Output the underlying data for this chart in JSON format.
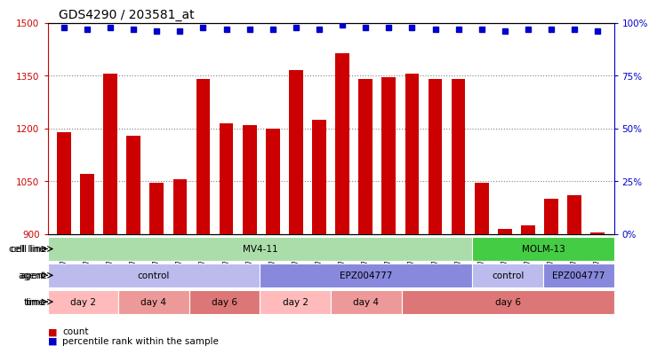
{
  "title": "GDS4290 / 203581_at",
  "samples": [
    "GSM739151",
    "GSM739152",
    "GSM739153",
    "GSM739157",
    "GSM739158",
    "GSM739159",
    "GSM739163",
    "GSM739164",
    "GSM739165",
    "GSM739148",
    "GSM739149",
    "GSM739150",
    "GSM739154",
    "GSM739155",
    "GSM739156",
    "GSM739160",
    "GSM739161",
    "GSM739162",
    "GSM739169",
    "GSM739170",
    "GSM739171",
    "GSM739166",
    "GSM739167",
    "GSM739168"
  ],
  "counts": [
    1190,
    1070,
    1355,
    1180,
    1045,
    1055,
    1340,
    1215,
    1210,
    1200,
    1365,
    1225,
    1415,
    1340,
    1345,
    1355,
    1340,
    1340,
    1045,
    915,
    925,
    1000,
    1010,
    905
  ],
  "percentile_ranks": [
    98,
    97,
    98,
    97,
    96,
    96,
    98,
    97,
    97,
    97,
    98,
    97,
    99,
    98,
    98,
    98,
    97,
    97,
    97,
    96,
    97,
    97,
    97,
    96
  ],
  "ylim_left": [
    900,
    1500
  ],
  "yticks_left": [
    900,
    1050,
    1200,
    1350,
    1500
  ],
  "ylim_right": [
    0,
    100
  ],
  "yticks_right": [
    0,
    25,
    50,
    75,
    100
  ],
  "bar_color": "#cc0000",
  "dot_color": "#0000cc",
  "bar_width": 0.6,
  "cell_line_row": [
    {
      "label": "MV4-11",
      "start": 0,
      "end": 18,
      "color": "#aaddaa"
    },
    {
      "label": "MOLM-13",
      "start": 18,
      "end": 24,
      "color": "#44cc44"
    }
  ],
  "agent_row": [
    {
      "label": "control",
      "start": 0,
      "end": 9,
      "color": "#bbbbee"
    },
    {
      "label": "EPZ004777",
      "start": 9,
      "end": 18,
      "color": "#8888dd"
    },
    {
      "label": "control",
      "start": 18,
      "end": 21,
      "color": "#bbbbee"
    },
    {
      "label": "EPZ004777",
      "start": 21,
      "end": 24,
      "color": "#8888dd"
    }
  ],
  "time_row": [
    {
      "label": "day 2",
      "start": 0,
      "end": 3,
      "color": "#ffbbbb"
    },
    {
      "label": "day 4",
      "start": 3,
      "end": 6,
      "color": "#ee9999"
    },
    {
      "label": "day 6",
      "start": 6,
      "end": 9,
      "color": "#dd7777"
    },
    {
      "label": "day 2",
      "start": 9,
      "end": 12,
      "color": "#ffbbbb"
    },
    {
      "label": "day 4",
      "start": 12,
      "end": 15,
      "color": "#ee9999"
    },
    {
      "label": "day 6",
      "start": 15,
      "end": 24,
      "color": "#dd7777"
    }
  ],
  "row_labels": [
    "cell line",
    "agent",
    "time"
  ],
  "legend_items": [
    {
      "color": "#cc0000",
      "label": "count"
    },
    {
      "color": "#0000cc",
      "label": "percentile rank within the sample"
    }
  ],
  "title_fontsize": 10,
  "tick_fontsize": 7.5,
  "annot_fontsize": 7.5,
  "sample_fontsize": 6
}
